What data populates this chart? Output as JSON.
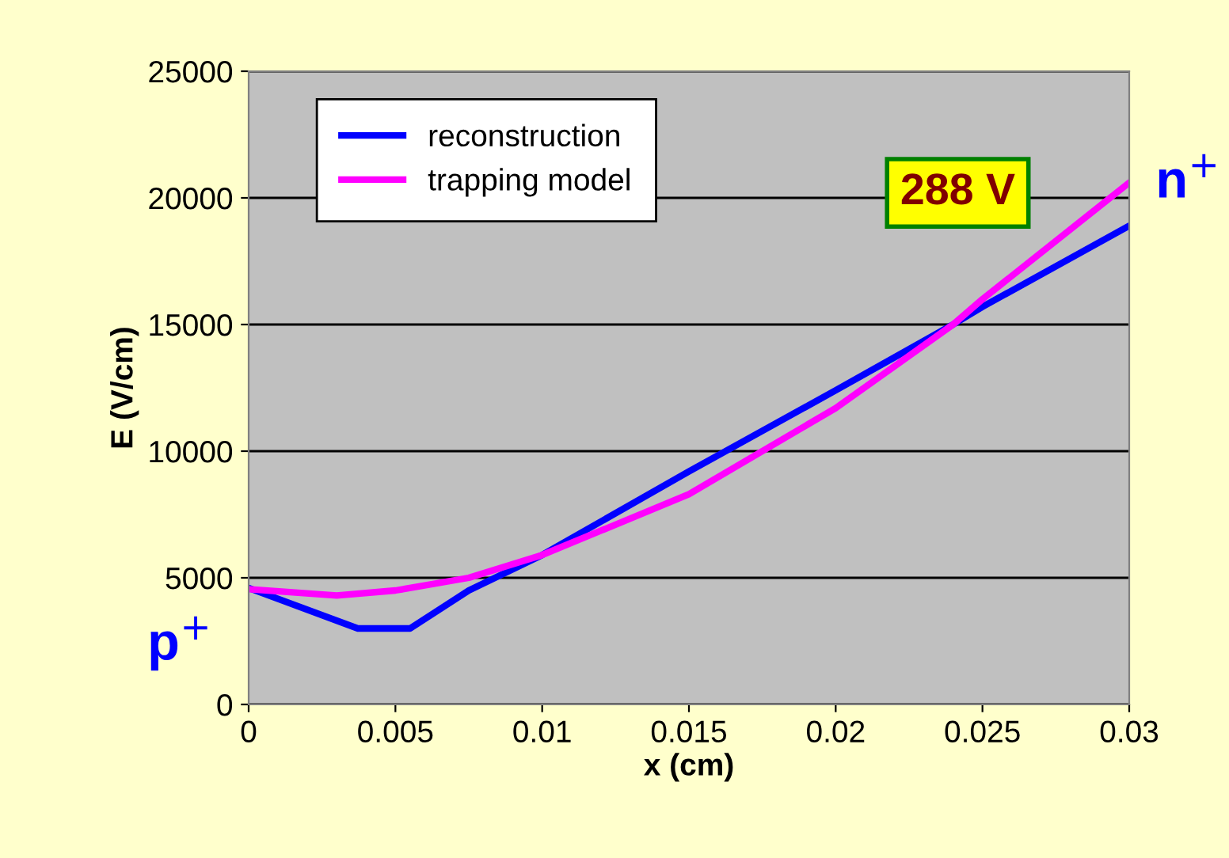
{
  "chart_data": {
    "type": "line",
    "xlabel": "x (cm)",
    "ylabel": "E (V/cm)",
    "annotations": [
      "288 V",
      "p$^{+}$",
      "n$^{+}$"
    ],
    "series": [
      {
        "name": "reconstruction",
        "color": "#0000ff",
        "x": [
          0,
          0.00372,
          0.0055,
          0.0075,
          0.01,
          0.015,
          0.02,
          0.024,
          0.025,
          0.03
        ],
        "values": [
          4600,
          3000,
          3000,
          4500,
          5900,
          9200,
          12400,
          15000,
          15700,
          18900
        ]
      },
      {
        "name": "trapping model",
        "color": "#ff00ff",
        "x": [
          0,
          0.003,
          0.005,
          0.0075,
          0.01,
          0.015,
          0.02,
          0.024,
          0.025,
          0.03
        ],
        "values": [
          4550,
          4300,
          4500,
          5000,
          5900,
          8300,
          11700,
          15000,
          16000,
          20600
        ]
      }
    ],
    "xlim": [
      0,
      0.03
    ],
    "xticks": [
      0,
      0.005,
      0.01,
      0.015,
      0.02,
      0.025,
      0.03
    ],
    "ylim": [
      0,
      25000
    ],
    "yticks": [
      0,
      5000,
      10000,
      15000,
      20000,
      25000
    ],
    "grid": "y",
    "legend": "top left",
    "marker": "none",
    "line_style": "solid"
  }
}
